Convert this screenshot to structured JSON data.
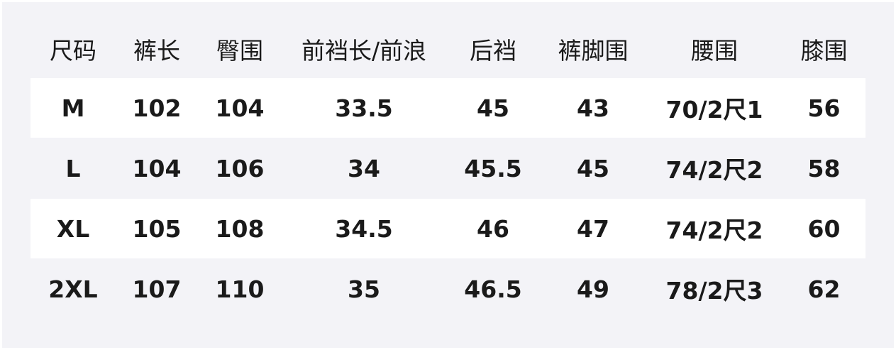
{
  "table": {
    "headers": [
      "尺码",
      "裤长",
      "臀围",
      "前裆长/前浪",
      "后裆",
      "裤脚围",
      "腰围",
      "膝围"
    ],
    "rows": [
      [
        "M",
        "102",
        "104",
        "33.5",
        "45",
        "43",
        "70/2尺1",
        "56"
      ],
      [
        "L",
        "104",
        "106",
        "34",
        "45.5",
        "45",
        "74/2尺2",
        "58"
      ],
      [
        "XL",
        "105",
        "108",
        "34.5",
        "46",
        "47",
        "74/2尺2",
        "60"
      ],
      [
        "2XL",
        "107",
        "110",
        "35",
        "46.5",
        "49",
        "78/2尺3",
        "62"
      ]
    ]
  },
  "colors": {
    "background": "#f3f3f7",
    "stripe": "#ffffff",
    "text": "#1a1a1a"
  }
}
